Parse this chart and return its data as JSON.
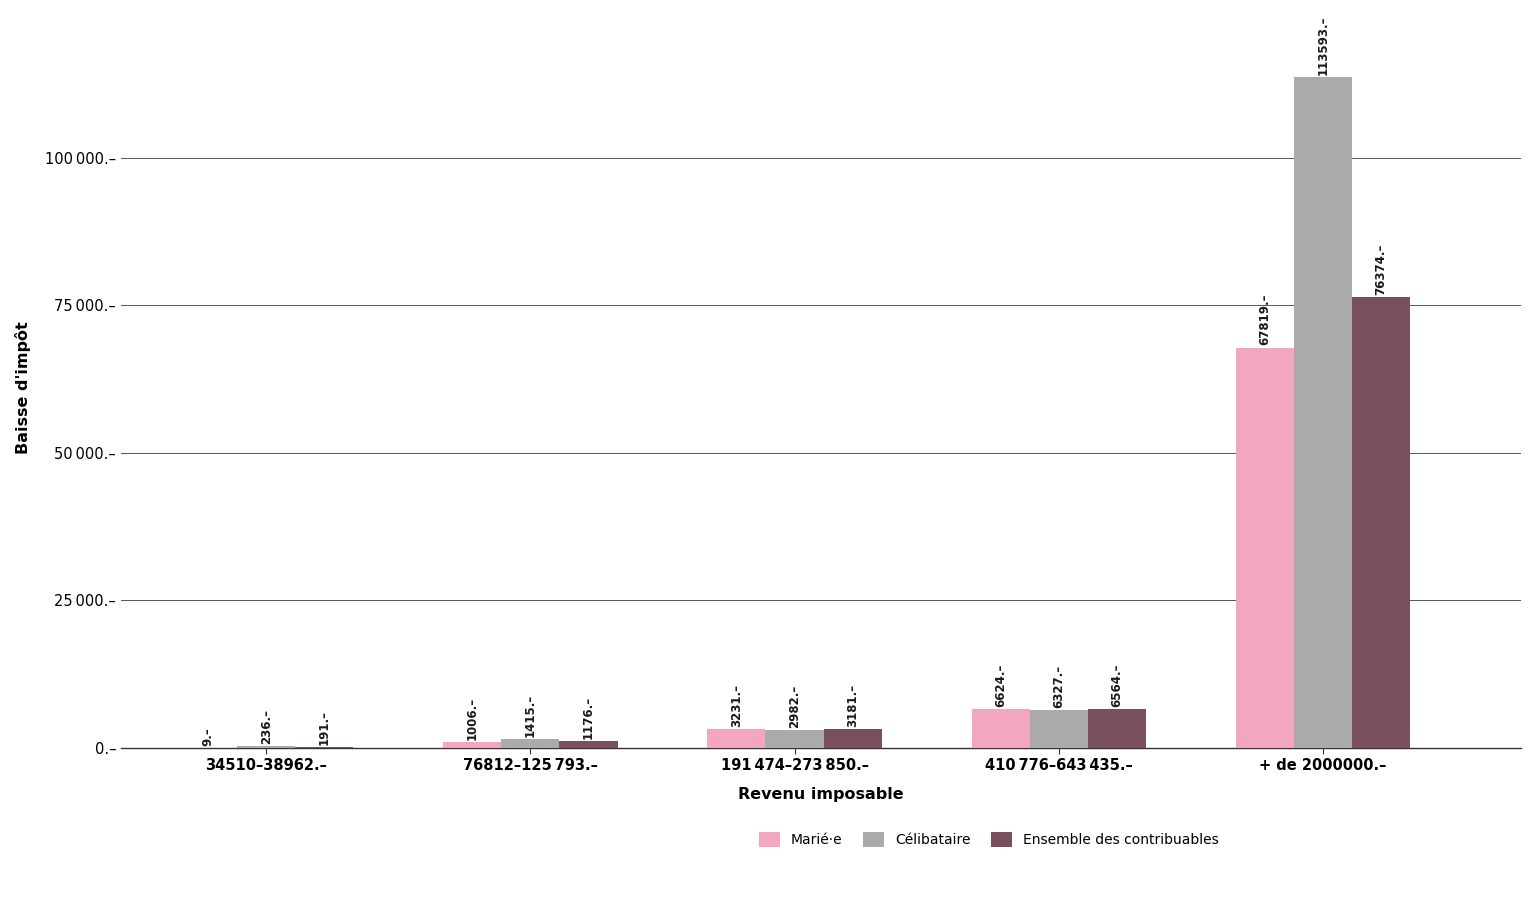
{
  "categories": [
    "34510–38962.–",
    "76812–125 793.–",
    "191 474–273 850.–",
    "410 776–643 435.–",
    "+ de 2000000.–"
  ],
  "series": {
    "Marié·e": [
      9,
      1006,
      3231,
      6624,
      67819
    ],
    "Célibataire": [
      236,
      1415,
      2982,
      6327,
      113593
    ],
    "Ensemble des contribuables": [
      191,
      1176,
      3181,
      6564,
      76374
    ]
  },
  "colors": {
    "Marié·e": "#f2a7bf",
    "Célibataire": "#aaaaaa",
    "Ensemble des contribuables": "#7a4f5e"
  },
  "ylabel": "Baisse d'impôt",
  "xlabel": "Revenu imposable",
  "yticks": [
    0,
    25000,
    50000,
    75000,
    100000
  ],
  "ytick_labels": [
    "0.–",
    "25 000.–",
    "50 000.–",
    "75 000.–",
    "100 000.–"
  ],
  "ylim": [
    0,
    122000
  ],
  "bar_width": 0.22,
  "background_color": "#ffffff",
  "grid_color": "#555555",
  "label_fontsize": 8.5,
  "axis_fontsize": 10.5,
  "legend_fontsize": 10
}
